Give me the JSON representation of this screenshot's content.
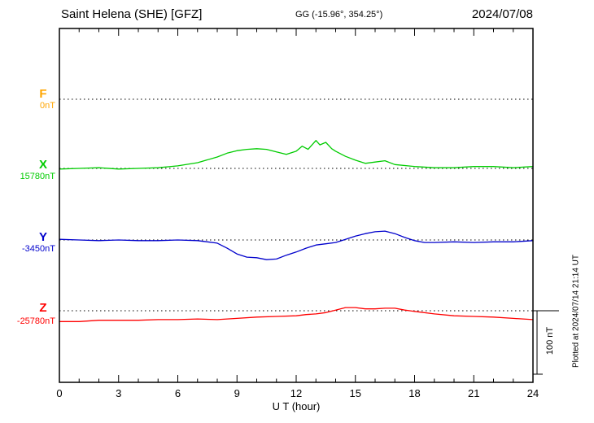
{
  "header": {
    "station": "Saint Helena (SHE)  [GFZ]",
    "coords": "GG (-15.96°, 354.25°)",
    "date": "2024/07/08"
  },
  "footer": {
    "xlabel": "U T (hour)"
  },
  "side": {
    "scale_label": "100 nT",
    "plotted_at": "Plotted at 2024/07/14 21:14 UT"
  },
  "chart_data": {
    "type": "line",
    "title": "Saint Helena (SHE) magnetogram",
    "xlabel": "U T (hour)",
    "x_range": [
      0,
      24
    ],
    "x_tick_values": [
      0,
      3,
      6,
      9,
      12,
      15,
      18,
      21,
      24
    ],
    "x_tick_labels": [
      "0",
      "3",
      "6",
      "9",
      "12",
      "15",
      "18",
      "21",
      "24"
    ],
    "grid": "dotted horizontal baselines per component, inward ticks top and bottom",
    "legend_position": "left margin component labels",
    "scale_bar": {
      "label": "100 nT",
      "nT": 100
    },
    "series": [
      {
        "name": "F",
        "color": "#FFA500",
        "baseline_value": 0,
        "baseline_label": "0nT",
        "x": [],
        "values": []
      },
      {
        "name": "X",
        "color": "#00CC00",
        "baseline_value": 15780,
        "baseline_label": "15780nT",
        "x": [
          0,
          1,
          2,
          3,
          4,
          5,
          6,
          7,
          8,
          8.5,
          9,
          9.5,
          10,
          10.5,
          11,
          11.5,
          12,
          12.3,
          12.6,
          13,
          13.2,
          13.5,
          13.8,
          14,
          14.5,
          15,
          15.5,
          16,
          16.5,
          17,
          18,
          19,
          20,
          21,
          22,
          23,
          24
        ],
        "values": [
          15779,
          15780,
          15781,
          15779,
          15780,
          15781,
          15784,
          15789,
          15798,
          15804,
          15808,
          15810,
          15811,
          15810,
          15806,
          15802,
          15807,
          15815,
          15810,
          15824,
          15817,
          15821,
          15811,
          15807,
          15799,
          15793,
          15788,
          15790,
          15792,
          15786,
          15783,
          15781,
          15781,
          15783,
          15783,
          15781,
          15783
        ]
      },
      {
        "name": "Y",
        "color": "#0000CC",
        "baseline_value": -3450,
        "baseline_label": "-3450nT",
        "x": [
          0,
          1,
          2,
          3,
          4,
          5,
          6,
          7,
          7.5,
          8,
          8.5,
          9,
          9.5,
          10,
          10.5,
          11,
          11.5,
          12,
          12.5,
          13,
          13.5,
          14,
          14.5,
          15,
          15.5,
          16,
          16.5,
          17,
          17.5,
          18,
          18.5,
          19,
          20,
          21,
          22,
          23,
          24
        ],
        "values": [
          -3449,
          -3450,
          -3451,
          -3450,
          -3451,
          -3451,
          -3450,
          -3451,
          -3453,
          -3455,
          -3463,
          -3472,
          -3477,
          -3478,
          -3481,
          -3480,
          -3474,
          -3469,
          -3463,
          -3458,
          -3456,
          -3454,
          -3449,
          -3444,
          -3440,
          -3437,
          -3436,
          -3440,
          -3446,
          -3451,
          -3454,
          -3454,
          -3453,
          -3454,
          -3453,
          -3453,
          -3451
        ]
      },
      {
        "name": "Z",
        "color": "#FF0000",
        "baseline_value": -25780,
        "baseline_label": "-25780nT",
        "x": [
          0,
          1,
          2,
          3,
          4,
          5,
          6,
          7,
          8,
          9,
          10,
          11,
          12,
          12.5,
          13,
          13.5,
          14,
          14.5,
          15,
          15.5,
          16,
          16.5,
          17,
          17.5,
          18,
          19,
          20,
          21,
          22,
          23,
          24
        ],
        "values": [
          -25797,
          -25797,
          -25795,
          -25795,
          -25795,
          -25794,
          -25794,
          -25793,
          -25794,
          -25792,
          -25790,
          -25789,
          -25788,
          -25786,
          -25785,
          -25783,
          -25779,
          -25775,
          -25775,
          -25777,
          -25777,
          -25776,
          -25776,
          -25779,
          -25781,
          -25785,
          -25788,
          -25789,
          -25790,
          -25792,
          -25794
        ]
      }
    ]
  }
}
